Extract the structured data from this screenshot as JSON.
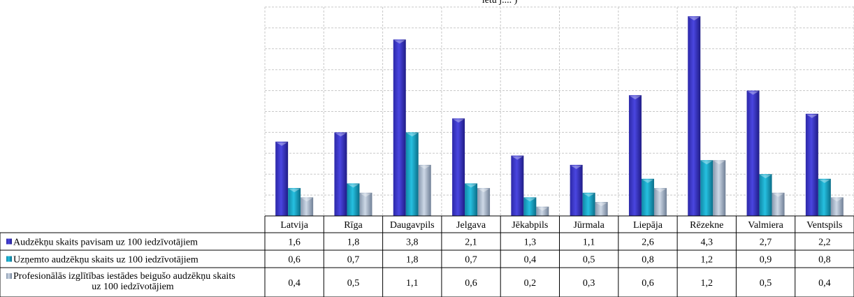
{
  "chart_data": {
    "type": "bar",
    "title": "",
    "title_fragment": "ietu j.... )",
    "categories": [
      "Latvija",
      "Rīga",
      "Daugavpils",
      "Jelgava",
      "Jēkabpils",
      "Jūrmala",
      "Liepāja",
      "Rēzekne",
      "Valmiera",
      "Ventspils"
    ],
    "series": [
      {
        "name": "Audzēkņu skaits pavisam uz 100 iedzīvotājiem",
        "values": [
          1.6,
          1.8,
          3.8,
          2.1,
          1.3,
          1.1,
          2.6,
          4.3,
          2.7,
          2.2
        ],
        "display": [
          "1,6",
          "1,8",
          "3,8",
          "2,1",
          "1,3",
          "1,1",
          "2,6",
          "4,3",
          "2,7",
          "2,2"
        ],
        "color": "#3a36c8"
      },
      {
        "name": "Uzņemto audzēkņu skaits uz 100 iedzīvotājiem",
        "values": [
          0.6,
          0.7,
          1.8,
          0.7,
          0.4,
          0.5,
          0.8,
          1.2,
          0.9,
          0.8
        ],
        "display": [
          "0,6",
          "0,7",
          "1,8",
          "0,7",
          "0,4",
          "0,5",
          "0,8",
          "1,2",
          "0,9",
          "0,8"
        ],
        "color": "#1aa8c9"
      },
      {
        "name": "Profesionālās izglītības iestādes beigušo audzēkņu skaits uz 100 iedzīvotājiem",
        "values": [
          0.4,
          0.5,
          1.1,
          0.6,
          0.2,
          0.3,
          0.6,
          1.2,
          0.5,
          0.4
        ],
        "display": [
          "0,4",
          "0,5",
          "1,1",
          "0,6",
          "0,2",
          "0,3",
          "0,6",
          "1,2",
          "0,5",
          "0,4"
        ],
        "color": "#a9b8cc"
      }
    ],
    "ylim": [
      0,
      4.5
    ],
    "grid": true,
    "legend": "data-table-left"
  }
}
